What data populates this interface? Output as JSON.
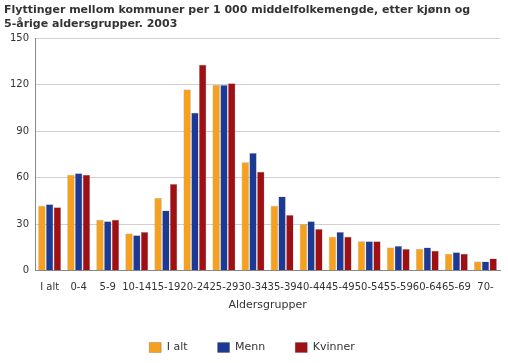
{
  "chart_data": {
    "type": "bar",
    "title": [
      "Flyttinger mellom kommuner per 1 000 middelfolkemengde, etter kjønn og",
      "5-årige aldersgrupper. 2003"
    ],
    "x_label": "Aldersgrupper",
    "categories": [
      "I alt",
      "0-4",
      "5-9",
      "10-14",
      "15-19",
      "20-24",
      "25-29",
      "30-34",
      "35-39",
      "40-44",
      "45-49",
      "50-54",
      "55-59",
      "60-64",
      "65-69",
      "70-"
    ],
    "series": [
      {
        "name": "I alt",
        "color": "#f5a01e",
        "values": [
          42,
          62,
          33,
          24,
          47,
          117,
          120,
          70,
          42,
          30,
          22,
          19,
          15,
          14,
          11,
          6
        ]
      },
      {
        "name": "Menn",
        "color": "#1c3a94",
        "values": [
          43,
          63,
          32,
          23,
          39,
          102,
          120,
          76,
          48,
          32,
          25,
          19,
          16,
          15,
          12,
          6
        ]
      },
      {
        "name": "Kvinner",
        "color": "#9e1014",
        "values": [
          41,
          62,
          33,
          25,
          56,
          133,
          121,
          64,
          36,
          27,
          22,
          19,
          14,
          13,
          11,
          8
        ]
      }
    ],
    "ylim": [
      0,
      150
    ],
    "yticks": [
      0,
      30,
      60,
      90,
      120,
      150
    ],
    "grid": true,
    "legend": "bottom"
  }
}
